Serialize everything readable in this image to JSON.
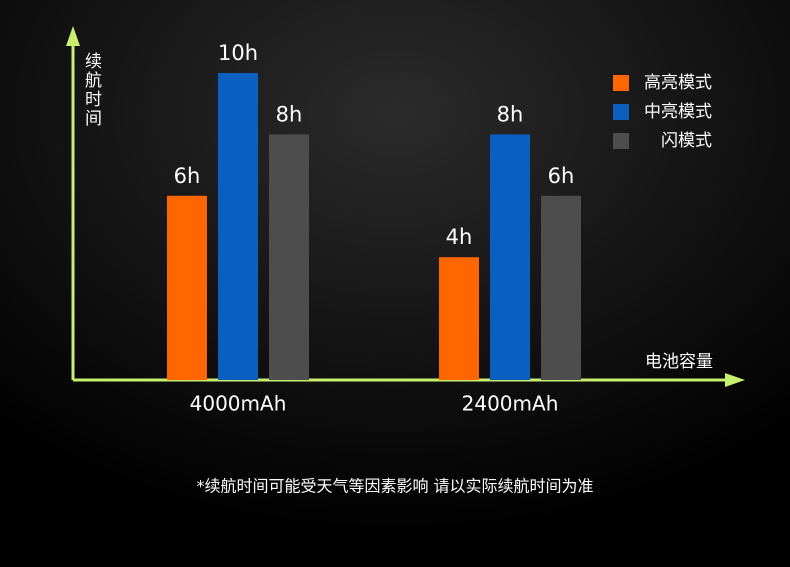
{
  "chart_data": {
    "type": "bar",
    "y_label": "续航时间",
    "x_label": "电池容量",
    "footnote": "*续航时间可能受天气等因素影响 请以实际续航时间为准",
    "categories": [
      "4000mAh",
      "2400mAh"
    ],
    "series": [
      {
        "name": "高亮模式",
        "color": "#ff6600",
        "values": [
          6,
          4
        ],
        "value_labels": [
          "6h",
          "4h"
        ]
      },
      {
        "name": "中亮模式",
        "color": "#0b5fc0",
        "values": [
          10,
          8
        ],
        "value_labels": [
          "10h",
          "8h"
        ]
      },
      {
        "name": "闪模式",
        "color": "#4d4d4d",
        "values": [
          8,
          6
        ],
        "value_labels": [
          "8h",
          "6h"
        ]
      }
    ],
    "ylim": [
      0,
      10
    ],
    "axis_color": "#c8ef6e"
  }
}
